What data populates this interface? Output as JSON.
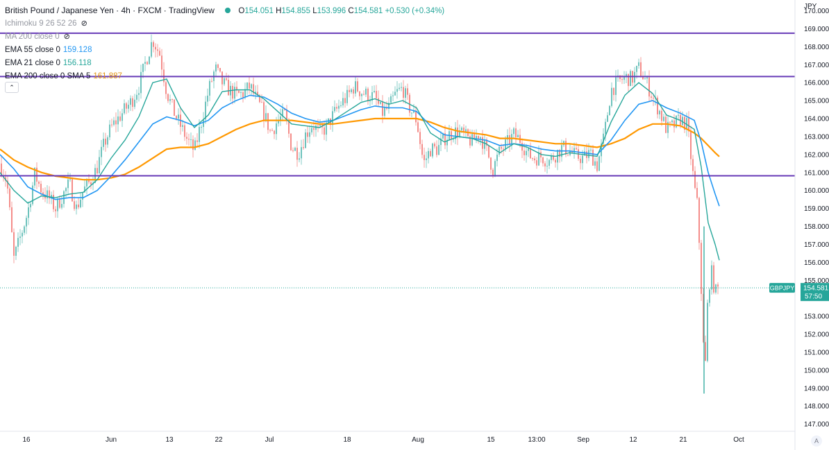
{
  "legend": {
    "symbol_title": "British Pound / Japanese Yen · 4h · FXCM · TradingView",
    "ohlc": {
      "o_label": "O",
      "o": "154.051",
      "h_label": "H",
      "h": "154.855",
      "l_label": "L",
      "l": "153.996",
      "c_label": "C",
      "c": "154.581",
      "change": "+0.530 (+0.34%)"
    },
    "indicators": [
      {
        "label": "Ichimoku 9 26 52 26",
        "value": "",
        "color": "#9598a1",
        "hidden": true
      },
      {
        "label": "MA 200 close 0",
        "value": "",
        "color": "#9598a1",
        "hidden": true
      },
      {
        "label": "EMA 55 close 0",
        "value": "159.128",
        "color": "#2196f3",
        "hidden": false
      },
      {
        "label": "EMA 21 close 0",
        "value": "156.118",
        "color": "#26a69a",
        "hidden": false
      },
      {
        "label": "EMA 200 close 0 SMA 5",
        "value": "161.887",
        "color": "#ff9800",
        "hidden": false
      }
    ]
  },
  "currency": "JPY",
  "auto_label": "A",
  "colors": {
    "up": "#26a69a",
    "down": "#ef5350",
    "level": "#673ab7",
    "ema55": "#2196f3",
    "ema21": "#26a69a",
    "ema200": "#ff9800"
  },
  "chart_data": {
    "type": "candlestick",
    "symbol": "GBPJPY",
    "timeframe": "4h",
    "ylim": [
      146.6,
      170.6
    ],
    "y_ticks": [
      "170.000",
      "169.000",
      "168.000",
      "167.000",
      "166.000",
      "165.000",
      "164.000",
      "163.000",
      "162.000",
      "161.000",
      "160.000",
      "159.000",
      "158.000",
      "157.000",
      "156.000",
      "155.000",
      "154.000",
      "153.000",
      "152.000",
      "151.000",
      "150.000",
      "149.000",
      "148.000",
      "147.000"
    ],
    "x_ticks": [
      "16",
      "Jun",
      "13",
      "22",
      "Jul",
      "18",
      "Aug",
      "15",
      "13:00",
      "Sep",
      "12",
      "21",
      "Oct"
    ],
    "horizontal_levels": [
      {
        "value": 168.754,
        "label": "168.754"
      },
      {
        "value": 166.34,
        "label": "166.340"
      },
      {
        "value": 160.821,
        "label": "160.821"
      }
    ],
    "last_price": {
      "value": 154.581,
      "label": "154.581",
      "symbol": "GBPJPY",
      "countdown": "57:50"
    },
    "close_series": [
      [
        0,
        161.5
      ],
      [
        10,
        160.5
      ],
      [
        20,
        156.2
      ],
      [
        30,
        157.5
      ],
      [
        40,
        158.8
      ],
      [
        50,
        160.9
      ],
      [
        60,
        160.0
      ],
      [
        70,
        159.6
      ],
      [
        80,
        159.0
      ],
      [
        90,
        159.7
      ],
      [
        100,
        160.4
      ],
      [
        110,
        159.0
      ],
      [
        120,
        160.0
      ],
      [
        130,
        160.5
      ],
      [
        140,
        161.3
      ],
      [
        150,
        162.6
      ],
      [
        160,
        163.5
      ],
      [
        170,
        164.0
      ],
      [
        180,
        164.5
      ],
      [
        190,
        165.0
      ],
      [
        200,
        165.8
      ],
      [
        210,
        167.2
      ],
      [
        220,
        168.4
      ],
      [
        230,
        167.6
      ],
      [
        240,
        165.5
      ],
      [
        250,
        164.4
      ],
      [
        260,
        163.6
      ],
      [
        270,
        162.8
      ],
      [
        280,
        162.2
      ],
      [
        290,
        163.8
      ],
      [
        300,
        165.5
      ],
      [
        310,
        166.8
      ],
      [
        320,
        166.0
      ],
      [
        330,
        165.6
      ],
      [
        340,
        165.3
      ],
      [
        350,
        165.4
      ],
      [
        360,
        165.8
      ],
      [
        370,
        165.0
      ],
      [
        380,
        164.3
      ],
      [
        390,
        163.2
      ],
      [
        400,
        163.9
      ],
      [
        410,
        164.2
      ],
      [
        420,
        162.4
      ],
      [
        430,
        162.1
      ],
      [
        440,
        163.1
      ],
      [
        450,
        163.7
      ],
      [
        460,
        163.2
      ],
      [
        470,
        163.5
      ],
      [
        480,
        164.2
      ],
      [
        490,
        164.8
      ],
      [
        500,
        165.2
      ],
      [
        510,
        165.8
      ],
      [
        520,
        165.5
      ],
      [
        530,
        165.3
      ],
      [
        540,
        165.2
      ],
      [
        550,
        164.3
      ],
      [
        560,
        164.6
      ],
      [
        570,
        165.4
      ],
      [
        580,
        165.7
      ],
      [
        590,
        164.6
      ],
      [
        600,
        163.9
      ],
      [
        610,
        161.5
      ],
      [
        620,
        162.3
      ],
      [
        630,
        162.3
      ],
      [
        640,
        162.9
      ],
      [
        650,
        163.2
      ],
      [
        660,
        163.3
      ],
      [
        670,
        163.0
      ],
      [
        680,
        162.7
      ],
      [
        690,
        163.2
      ],
      [
        700,
        162.3
      ],
      [
        710,
        161.2
      ],
      [
        720,
        162.2
      ],
      [
        730,
        162.6
      ],
      [
        740,
        163.1
      ],
      [
        750,
        162.8
      ],
      [
        760,
        162.0
      ],
      [
        770,
        161.8
      ],
      [
        780,
        161.9
      ],
      [
        790,
        161.6
      ],
      [
        800,
        162.0
      ],
      [
        810,
        162.4
      ],
      [
        820,
        162.2
      ],
      [
        830,
        161.9
      ],
      [
        840,
        161.8
      ],
      [
        850,
        162.1
      ],
      [
        860,
        161.4
      ],
      [
        870,
        163.0
      ],
      [
        880,
        165.6
      ],
      [
        890,
        166.0
      ],
      [
        900,
        166.3
      ],
      [
        910,
        166.2
      ],
      [
        920,
        166.8
      ],
      [
        930,
        166.1
      ],
      [
        940,
        165.2
      ],
      [
        950,
        164.4
      ],
      [
        960,
        163.4
      ],
      [
        970,
        163.6
      ],
      [
        980,
        164.0
      ],
      [
        990,
        163.6
      ],
      [
        1000,
        160.2
      ],
      [
        1005,
        159.0
      ],
      [
        1010,
        154.5
      ],
      [
        1015,
        149.3
      ],
      [
        1020,
        154.6
      ],
      [
        1025,
        155.4
      ],
      [
        1030,
        154.3
      ],
      [
        1035,
        154.581
      ]
    ],
    "ema21_series": [
      [
        0,
        161.0
      ],
      [
        20,
        160.0
      ],
      [
        40,
        159.3
      ],
      [
        60,
        159.7
      ],
      [
        80,
        159.6
      ],
      [
        100,
        159.8
      ],
      [
        120,
        159.9
      ],
      [
        140,
        160.6
      ],
      [
        160,
        161.8
      ],
      [
        180,
        162.8
      ],
      [
        200,
        164.1
      ],
      [
        220,
        166.0
      ],
      [
        240,
        166.2
      ],
      [
        260,
        164.6
      ],
      [
        280,
        163.5
      ],
      [
        300,
        164.2
      ],
      [
        320,
        165.5
      ],
      [
        340,
        165.6
      ],
      [
        360,
        165.6
      ],
      [
        380,
        165.1
      ],
      [
        400,
        164.4
      ],
      [
        420,
        163.7
      ],
      [
        440,
        163.6
      ],
      [
        460,
        163.5
      ],
      [
        480,
        163.9
      ],
      [
        500,
        164.4
      ],
      [
        520,
        164.9
      ],
      [
        540,
        165.1
      ],
      [
        560,
        164.8
      ],
      [
        580,
        165.0
      ],
      [
        600,
        164.6
      ],
      [
        620,
        163.2
      ],
      [
        640,
        162.7
      ],
      [
        660,
        163.0
      ],
      [
        680,
        162.9
      ],
      [
        700,
        162.6
      ],
      [
        720,
        162.1
      ],
      [
        740,
        162.6
      ],
      [
        760,
        162.4
      ],
      [
        780,
        162.0
      ],
      [
        800,
        161.9
      ],
      [
        820,
        162.1
      ],
      [
        840,
        162.0
      ],
      [
        860,
        161.9
      ],
      [
        880,
        163.8
      ],
      [
        900,
        165.3
      ],
      [
        920,
        166.0
      ],
      [
        940,
        165.4
      ],
      [
        960,
        164.2
      ],
      [
        980,
        163.9
      ],
      [
        1000,
        163.4
      ],
      [
        1010,
        161.3
      ],
      [
        1020,
        158.2
      ],
      [
        1030,
        157.0
      ],
      [
        1036,
        156.118
      ]
    ],
    "ema55_series": [
      [
        0,
        162.0
      ],
      [
        20,
        161.2
      ],
      [
        40,
        160.2
      ],
      [
        60,
        159.8
      ],
      [
        80,
        159.5
      ],
      [
        100,
        159.6
      ],
      [
        120,
        159.6
      ],
      [
        140,
        160.0
      ],
      [
        160,
        160.8
      ],
      [
        180,
        161.7
      ],
      [
        200,
        162.7
      ],
      [
        220,
        163.7
      ],
      [
        240,
        164.1
      ],
      [
        260,
        163.9
      ],
      [
        280,
        163.6
      ],
      [
        300,
        163.9
      ],
      [
        320,
        164.6
      ],
      [
        340,
        165.0
      ],
      [
        360,
        165.3
      ],
      [
        380,
        165.2
      ],
      [
        400,
        164.8
      ],
      [
        420,
        164.3
      ],
      [
        440,
        164.0
      ],
      [
        460,
        163.8
      ],
      [
        480,
        163.9
      ],
      [
        500,
        164.2
      ],
      [
        520,
        164.5
      ],
      [
        540,
        164.7
      ],
      [
        560,
        164.6
      ],
      [
        580,
        164.6
      ],
      [
        600,
        164.4
      ],
      [
        620,
        163.6
      ],
      [
        640,
        163.1
      ],
      [
        660,
        163.0
      ],
      [
        680,
        162.9
      ],
      [
        700,
        162.8
      ],
      [
        720,
        162.5
      ],
      [
        740,
        162.6
      ],
      [
        760,
        162.5
      ],
      [
        780,
        162.3
      ],
      [
        800,
        162.2
      ],
      [
        820,
        162.2
      ],
      [
        840,
        162.1
      ],
      [
        860,
        162.0
      ],
      [
        880,
        162.8
      ],
      [
        900,
        163.9
      ],
      [
        920,
        164.8
      ],
      [
        940,
        165.0
      ],
      [
        960,
        164.6
      ],
      [
        980,
        164.3
      ],
      [
        1000,
        163.9
      ],
      [
        1010,
        162.7
      ],
      [
        1020,
        161.0
      ],
      [
        1030,
        159.8
      ],
      [
        1036,
        159.128
      ]
    ],
    "ema200_series": [
      [
        0,
        162.3
      ],
      [
        20,
        161.7
      ],
      [
        40,
        161.3
      ],
      [
        60,
        161.0
      ],
      [
        80,
        160.8
      ],
      [
        100,
        160.7
      ],
      [
        120,
        160.6
      ],
      [
        140,
        160.6
      ],
      [
        160,
        160.7
      ],
      [
        180,
        160.9
      ],
      [
        200,
        161.3
      ],
      [
        220,
        161.8
      ],
      [
        240,
        162.3
      ],
      [
        260,
        162.4
      ],
      [
        280,
        162.4
      ],
      [
        300,
        162.6
      ],
      [
        320,
        163.0
      ],
      [
        340,
        163.4
      ],
      [
        360,
        163.7
      ],
      [
        380,
        163.9
      ],
      [
        400,
        163.9
      ],
      [
        420,
        163.9
      ],
      [
        440,
        163.8
      ],
      [
        460,
        163.7
      ],
      [
        480,
        163.7
      ],
      [
        500,
        163.8
      ],
      [
        520,
        163.9
      ],
      [
        540,
        164.0
      ],
      [
        560,
        164.0
      ],
      [
        580,
        164.0
      ],
      [
        600,
        164.0
      ],
      [
        620,
        163.8
      ],
      [
        640,
        163.5
      ],
      [
        660,
        163.3
      ],
      [
        680,
        163.2
      ],
      [
        700,
        163.1
      ],
      [
        720,
        162.9
      ],
      [
        740,
        162.9
      ],
      [
        760,
        162.8
      ],
      [
        780,
        162.7
      ],
      [
        800,
        162.6
      ],
      [
        820,
        162.6
      ],
      [
        840,
        162.5
      ],
      [
        860,
        162.4
      ],
      [
        880,
        162.6
      ],
      [
        900,
        162.9
      ],
      [
        920,
        163.4
      ],
      [
        940,
        163.7
      ],
      [
        960,
        163.7
      ],
      [
        980,
        163.6
      ],
      [
        1000,
        163.2
      ],
      [
        1010,
        162.9
      ],
      [
        1020,
        162.5
      ],
      [
        1030,
        162.1
      ],
      [
        1036,
        161.887
      ]
    ]
  }
}
